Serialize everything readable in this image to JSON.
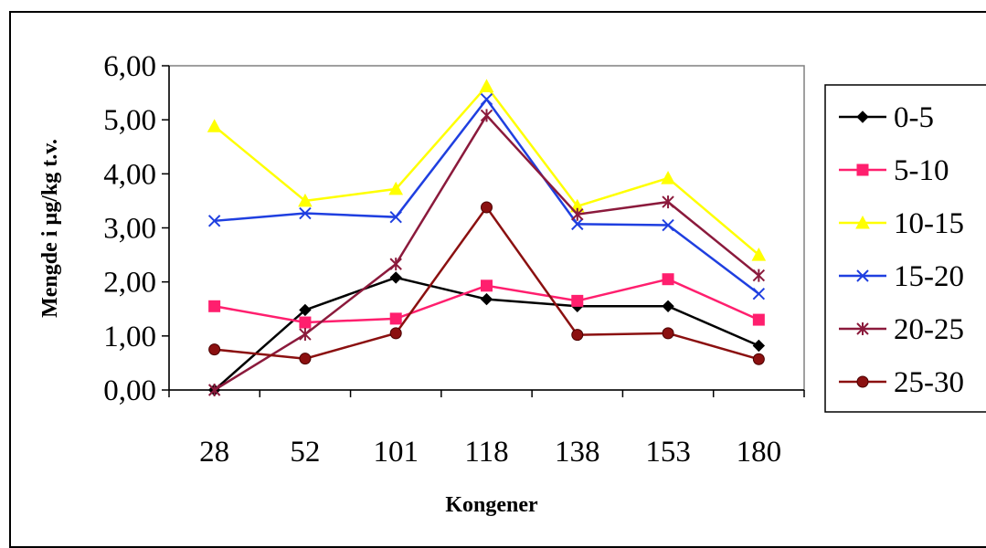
{
  "chart_data": {
    "type": "line",
    "title": "",
    "xlabel": "Kongener",
    "ylabel": "Mengde i µg/kg t.v.",
    "categories": [
      "28",
      "52",
      "101",
      "118",
      "138",
      "153",
      "180"
    ],
    "ylim": [
      0,
      6
    ],
    "yticks": [
      "0,00",
      "1,00",
      "2,00",
      "3,00",
      "4,00",
      "5,00",
      "6,00"
    ],
    "grid": false,
    "legend_position": "right",
    "series": [
      {
        "name": "0-5",
        "color": "#000000",
        "marker": "diamond",
        "values": [
          0.0,
          1.48,
          2.08,
          1.68,
          1.55,
          1.55,
          0.82
        ]
      },
      {
        "name": "5-10",
        "color": "#ff1f6e",
        "marker": "square",
        "values": [
          1.55,
          1.25,
          1.32,
          1.93,
          1.65,
          2.05,
          1.3
        ]
      },
      {
        "name": "10-15",
        "color": "#ffff00",
        "marker": "triangle",
        "values": [
          4.88,
          3.5,
          3.72,
          5.62,
          3.4,
          3.92,
          2.5
        ]
      },
      {
        "name": "15-20",
        "color": "#1f3fe0",
        "marker": "x",
        "values": [
          3.13,
          3.27,
          3.2,
          5.38,
          3.07,
          3.05,
          1.78
        ]
      },
      {
        "name": "20-25",
        "color": "#8b1a3c",
        "marker": "star",
        "values": [
          0.0,
          1.03,
          2.33,
          5.08,
          3.25,
          3.48,
          2.12
        ]
      },
      {
        "name": "25-30",
        "color": "#8b1010",
        "marker": "circle",
        "values": [
          0.75,
          0.58,
          1.05,
          3.38,
          1.02,
          1.05,
          0.57
        ]
      }
    ]
  }
}
